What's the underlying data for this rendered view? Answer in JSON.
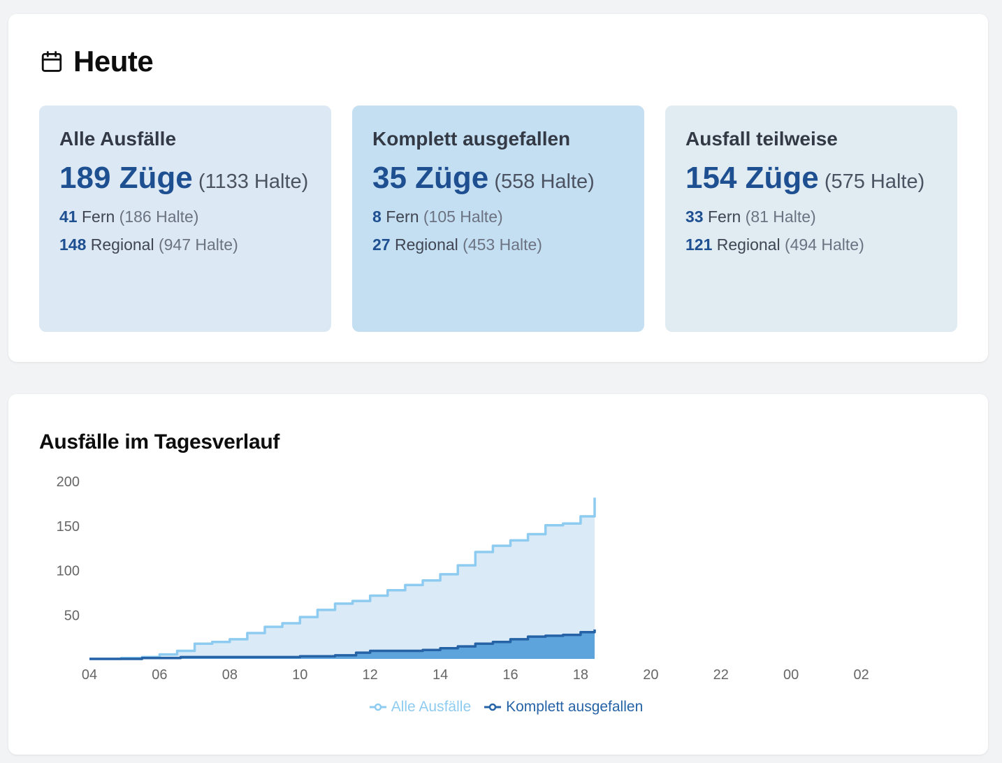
{
  "today": {
    "title": "Heute",
    "icon": "calendar-icon",
    "cards": [
      {
        "title": "Alle Ausfälle",
        "trains": "189 Züge",
        "stops": "(1133 Halte)",
        "fern_count": "41",
        "fern_label": "Fern",
        "fern_stops": "(186 Halte)",
        "regional_count": "148",
        "regional_label": "Regional",
        "regional_stops": "(947 Halte)",
        "bg": "#dce8f3"
      },
      {
        "title": "Komplett ausgefallen",
        "trains": "35 Züge",
        "stops": "(558 Halte)",
        "fern_count": "8",
        "fern_label": "Fern",
        "fern_stops": "(105 Halte)",
        "regional_count": "27",
        "regional_label": "Regional",
        "regional_stops": "(453 Halte)",
        "bg": "#c5dff2"
      },
      {
        "title": "Ausfall teilweise",
        "trains": "154 Züge",
        "stops": "(575 Halte)",
        "fern_count": "33",
        "fern_label": "Fern",
        "fern_stops": "(81 Halte)",
        "regional_count": "121",
        "regional_label": "Regional",
        "regional_stops": "(494 Halte)",
        "bg": "#e0ebf2"
      }
    ]
  },
  "chart_data": {
    "type": "area",
    "title": "Ausfälle im Tagesverlauf",
    "xlabel": "",
    "ylabel": "",
    "x_ticks": [
      "04",
      "06",
      "08",
      "10",
      "12",
      "14",
      "16",
      "18",
      "20",
      "22",
      "00",
      "02"
    ],
    "x_range_hours": [
      4,
      28
    ],
    "y_ticks": [
      50,
      100,
      150,
      200
    ],
    "ylim": [
      0,
      200
    ],
    "grid": false,
    "legend_position": "bottom",
    "step": true,
    "series": [
      {
        "name": "Alle Ausfälle",
        "color": "#8ecbf0",
        "fill": "#dbeaf7",
        "x": [
          4,
          4.9,
          5.5,
          6,
          6.5,
          7,
          7.5,
          8,
          8.5,
          9,
          9.5,
          10,
          10.5,
          11,
          11.5,
          12,
          12.5,
          13,
          13.5,
          14,
          14.5,
          15,
          15.5,
          16,
          16.5,
          17,
          17.5,
          18,
          18.4
        ],
        "values": [
          0,
          1,
          2,
          5,
          9,
          17,
          19,
          22,
          29,
          36,
          40,
          47,
          55,
          62,
          65,
          71,
          77,
          83,
          88,
          95,
          105,
          120,
          127,
          133,
          140,
          150,
          152,
          160,
          181
        ]
      },
      {
        "name": "Komplett ausgefallen",
        "color": "#2563a6",
        "fill": "#5da3dc",
        "x": [
          4,
          5.5,
          6,
          6.6,
          8,
          9.9,
          10,
          11,
          11.6,
          12,
          12.5,
          13,
          13.5,
          14,
          14.5,
          15,
          15.5,
          16,
          16.5,
          17,
          17.5,
          18,
          18.4
        ],
        "values": [
          0,
          1,
          1,
          2,
          2,
          2,
          3,
          4,
          7,
          9,
          9,
          9,
          10,
          12,
          14,
          17,
          19,
          22,
          25,
          26,
          27,
          30,
          33
        ]
      }
    ]
  }
}
